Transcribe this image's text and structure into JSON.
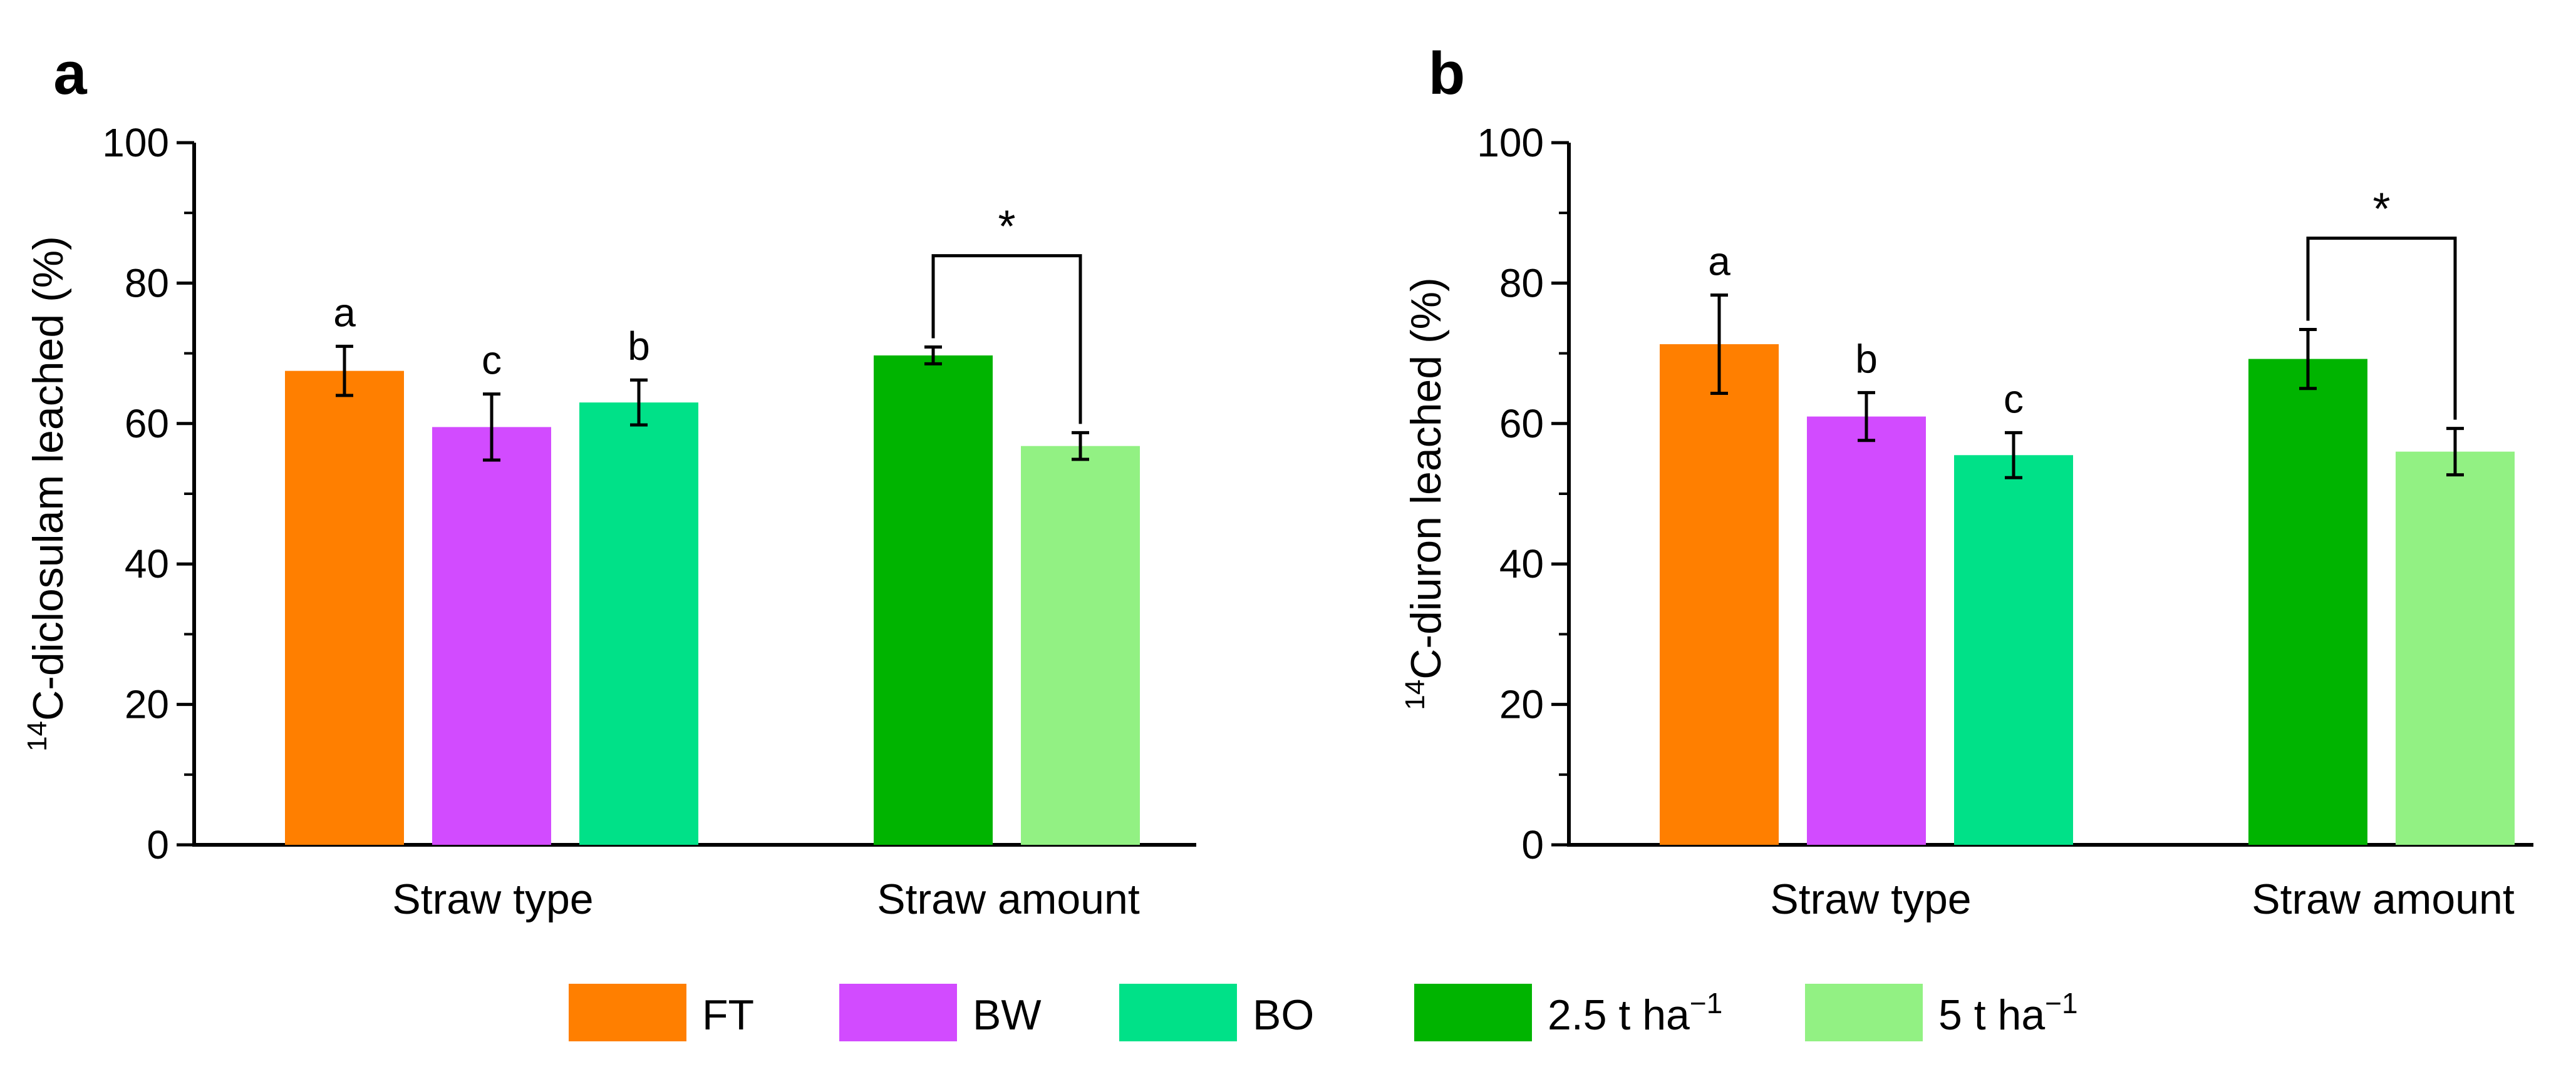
{
  "legend": [
    {
      "label": "FT",
      "color": "#ff7f00"
    },
    {
      "label": "BW",
      "color": "#d24bff"
    },
    {
      "label": "BO",
      "color": "#00e188"
    },
    {
      "label": "2.5 t ha",
      "sup": "−1",
      "color": "#00b400"
    },
    {
      "label": "5 t ha",
      "sup": "−1",
      "color": "#92f183"
    }
  ],
  "chart_data": [
    {
      "type": "bar",
      "panel_label": "a",
      "ylabel_sup": "14",
      "ylabel": "C-diclosulam leached (%)",
      "ylim": [
        0,
        100
      ],
      "yticks": [
        0,
        20,
        40,
        60,
        80,
        100
      ],
      "groups": [
        {
          "label": "Straw type",
          "bars": [
            {
              "name": "FT",
              "value": 67.5,
              "error": 3.5,
              "letter": "a",
              "color": "#ff7f00"
            },
            {
              "name": "BW",
              "value": 59.5,
              "error": 4.7,
              "letter": "c",
              "color": "#d24bff"
            },
            {
              "name": "BO",
              "value": 63.0,
              "error": 3.2,
              "letter": "b",
              "color": "#00e188"
            }
          ]
        },
        {
          "label": "Straw amount",
          "significance": "*",
          "bars": [
            {
              "name": "2.5 t ha−1",
              "value": 69.7,
              "error": 1.2,
              "color": "#00b400"
            },
            {
              "name": "5 t ha−1",
              "value": 56.8,
              "error": 1.9,
              "color": "#92f183"
            }
          ]
        }
      ]
    },
    {
      "type": "bar",
      "panel_label": "b",
      "ylabel_sup": "14",
      "ylabel": "C-diuron leached (%)",
      "ylim": [
        0,
        100
      ],
      "yticks": [
        0,
        20,
        40,
        60,
        80,
        100
      ],
      "groups": [
        {
          "label": "Straw type",
          "bars": [
            {
              "name": "FT",
              "value": 71.3,
              "error": 7.0,
              "letter": "a",
              "color": "#ff7f00"
            },
            {
              "name": "BW",
              "value": 61.0,
              "error": 3.4,
              "letter": "b",
              "color": "#d24bff"
            },
            {
              "name": "BO",
              "value": 55.5,
              "error": 3.2,
              "letter": "c",
              "color": "#00e188"
            }
          ]
        },
        {
          "label": "Straw amount",
          "significance": "*",
          "bars": [
            {
              "name": "2.5 t ha−1",
              "value": 69.2,
              "error": 4.2,
              "color": "#00b400"
            },
            {
              "name": "5 t ha−1",
              "value": 56.0,
              "error": 3.3,
              "color": "#92f183"
            }
          ]
        }
      ]
    }
  ]
}
